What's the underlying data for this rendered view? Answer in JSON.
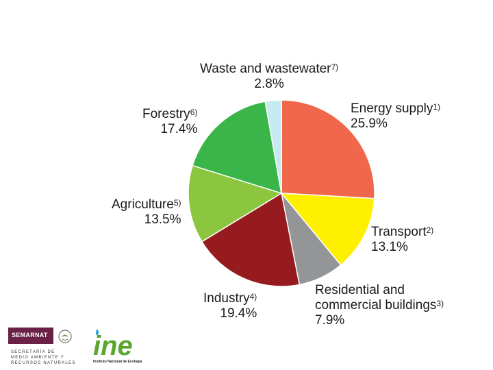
{
  "chart_data": {
    "type": "pie",
    "slices": [
      {
        "label": "Energy supply",
        "note": "1)",
        "value": 25.9,
        "pct_text": "25.9%",
        "color": "#f0674b"
      },
      {
        "label": "Transport",
        "note": "2)",
        "value": 13.1,
        "pct_text": "13.1%",
        "color": "#fff000"
      },
      {
        "label": "Residential and commercial buildings",
        "label_line1": "Residential and",
        "label_line2": "commercial buildings",
        "note": "3)",
        "value": 7.9,
        "pct_text": "7.9%",
        "color": "#939597"
      },
      {
        "label": "Industry",
        "note": "4)",
        "value": 19.4,
        "pct_text": "19.4%",
        "color": "#961b1e"
      },
      {
        "label": "Agriculture",
        "note": "5)",
        "value": 13.5,
        "pct_text": "13.5%",
        "color": "#8cc63f"
      },
      {
        "label": "Forestry",
        "note": "6)",
        "value": 17.4,
        "pct_text": "17.4%",
        "color": "#39b54a"
      },
      {
        "label": "Waste and wastewater",
        "note": "7)",
        "value": 2.8,
        "pct_text": "2.8%",
        "color": "#c7e9f0"
      }
    ]
  },
  "footer": {
    "semarnat": {
      "brand": "SEMARNAT",
      "line1": "SECRETARÍA DE",
      "line2": "MEDIO AMBIENTE Y",
      "line3": "RECURSOS NATURALES"
    },
    "ine": {
      "logo_text": "ine",
      "subtitle": "Instituto Nacional de Ecología",
      "color": "#5aa62e",
      "drop_color": "#2a9fd6"
    }
  }
}
